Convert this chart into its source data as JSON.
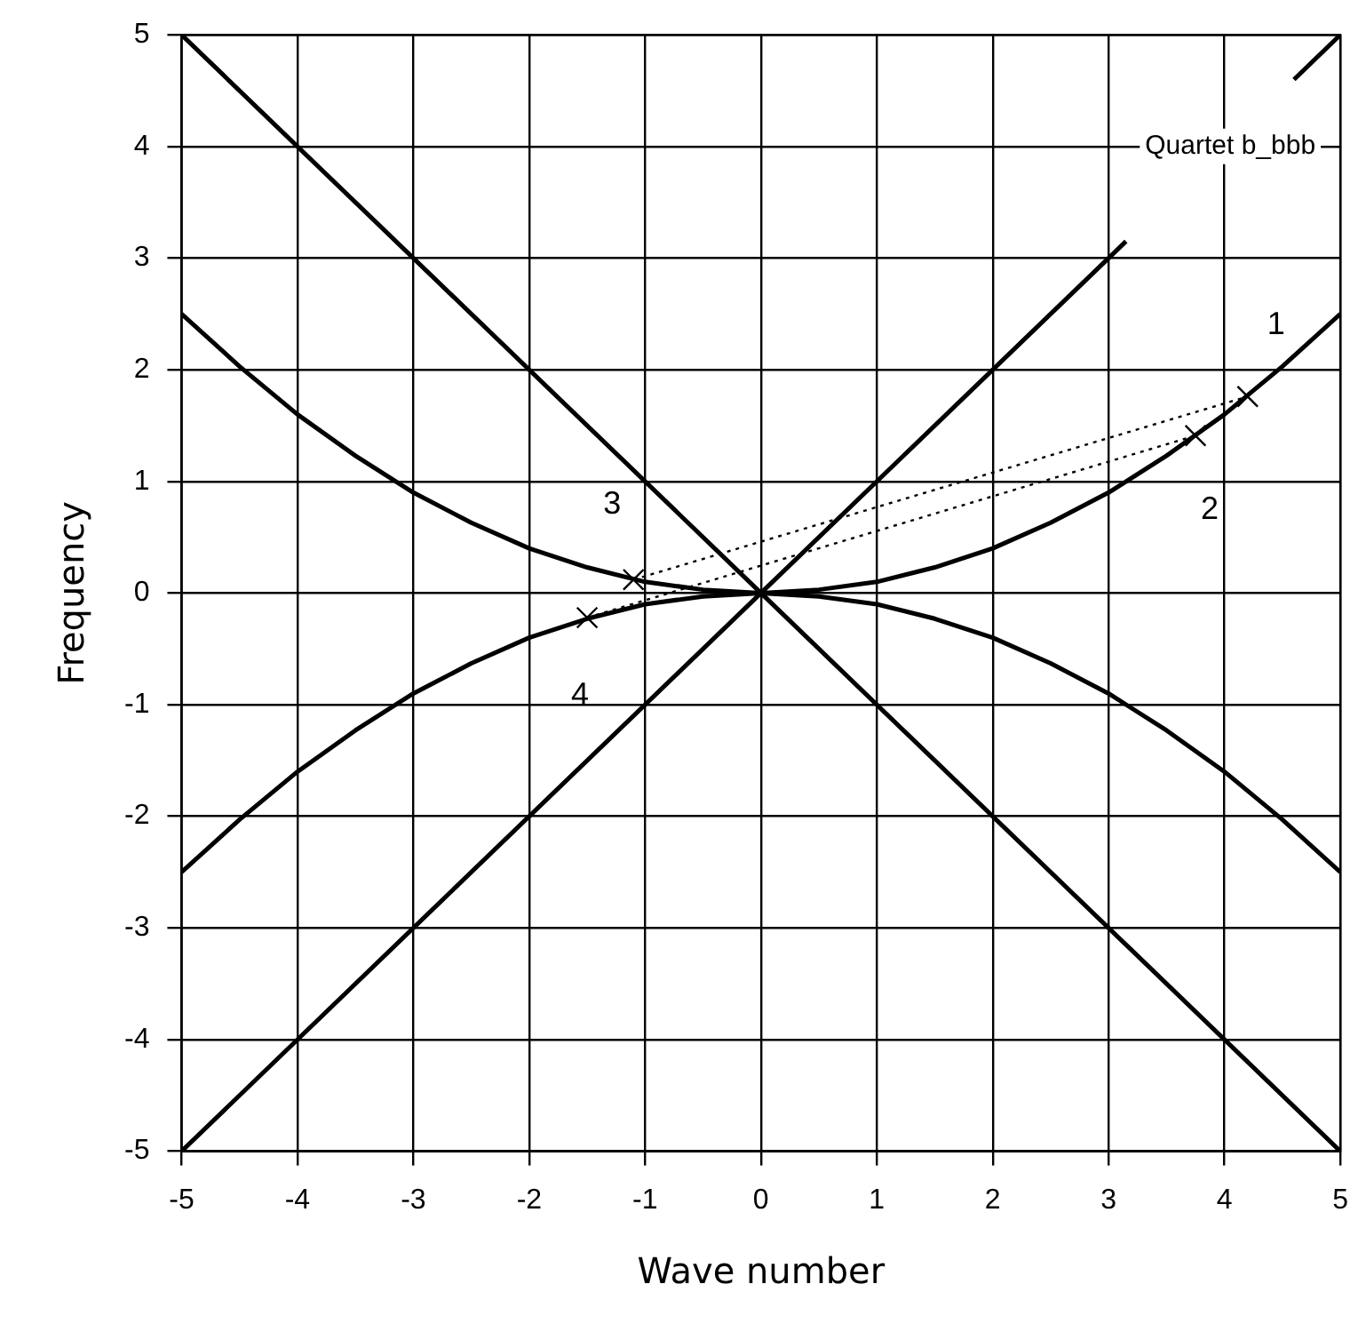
{
  "chart_data": {
    "type": "line",
    "xlabel": "Wave number",
    "ylabel": "Frequency",
    "xlim": [
      -5,
      5
    ],
    "ylim": [
      -5,
      5
    ],
    "xticks": [
      -5,
      -4,
      -3,
      -2,
      -1,
      0,
      1,
      2,
      3,
      4,
      5
    ],
    "yticks": [
      -5,
      -4,
      -3,
      -2,
      -1,
      0,
      1,
      2,
      3,
      4,
      5
    ],
    "grid": true,
    "legend": false,
    "series": [
      {
        "type": "line",
        "color": "#000000",
        "marker": "none",
        "line_style": "solid",
        "x": [
          -5,
          0,
          3.15,
          3.5,
          4.6,
          5
        ],
        "values": [
          -5,
          0,
          3.15,
          null,
          4.6,
          5
        ]
      },
      {
        "type": "line",
        "color": "#000000",
        "marker": "none",
        "line_style": "solid",
        "x": [
          -5,
          0,
          5
        ],
        "values": [
          5,
          0,
          -5
        ]
      },
      {
        "type": "line",
        "color": "#000000",
        "marker": "none",
        "line_style": "solid",
        "x": [
          -5,
          -4.5,
          -4,
          -3.5,
          -3,
          -2.5,
          -2,
          -1.5,
          -1,
          -0.5,
          0,
          0.5,
          1,
          1.5,
          2,
          2.5,
          3,
          3.5,
          4,
          4.5,
          5
        ],
        "values": [
          2.5,
          2.03,
          1.6,
          1.23,
          0.9,
          0.63,
          0.4,
          0.23,
          0.1,
          0.03,
          0,
          0.03,
          0.1,
          0.23,
          0.4,
          0.63,
          0.9,
          1.23,
          1.6,
          2.03,
          2.5
        ]
      },
      {
        "type": "line",
        "color": "#000000",
        "marker": "none",
        "line_style": "solid",
        "x": [
          -5,
          -4.5,
          -4,
          -3.5,
          -3,
          -2.5,
          -2,
          -1.5,
          -1,
          -0.5,
          0,
          0.5,
          1,
          1.5,
          2,
          2.5,
          3,
          3.5,
          4,
          4.5,
          5
        ],
        "values": [
          -2.5,
          -2.03,
          -1.6,
          -1.23,
          -0.9,
          -0.63,
          -0.4,
          -0.23,
          -0.1,
          -0.03,
          0,
          -0.03,
          -0.1,
          -0.23,
          -0.4,
          -0.63,
          -0.9,
          -1.23,
          -1.6,
          -2.03,
          -2.5
        ]
      },
      {
        "type": "line",
        "color": "#000000",
        "marker": "cross",
        "line_style": "dotted",
        "x": [
          -1.1,
          4.2
        ],
        "values": [
          0.12,
          1.76
        ]
      },
      {
        "type": "line",
        "color": "#000000",
        "marker": "cross",
        "line_style": "dotted",
        "x": [
          -1.5,
          3.75
        ],
        "values": [
          -0.22,
          1.41
        ]
      }
    ],
    "annotations": [
      "Quartet b_bbb",
      {
        "text": "1",
        "x": 4.2,
        "y": 1.76
      },
      {
        "text": "2",
        "x": 3.75,
        "y": 1.41
      },
      {
        "text": "3",
        "x": -1.1,
        "y": 0.12
      },
      {
        "text": "4",
        "x": -1.5,
        "y": -0.22
      }
    ]
  }
}
